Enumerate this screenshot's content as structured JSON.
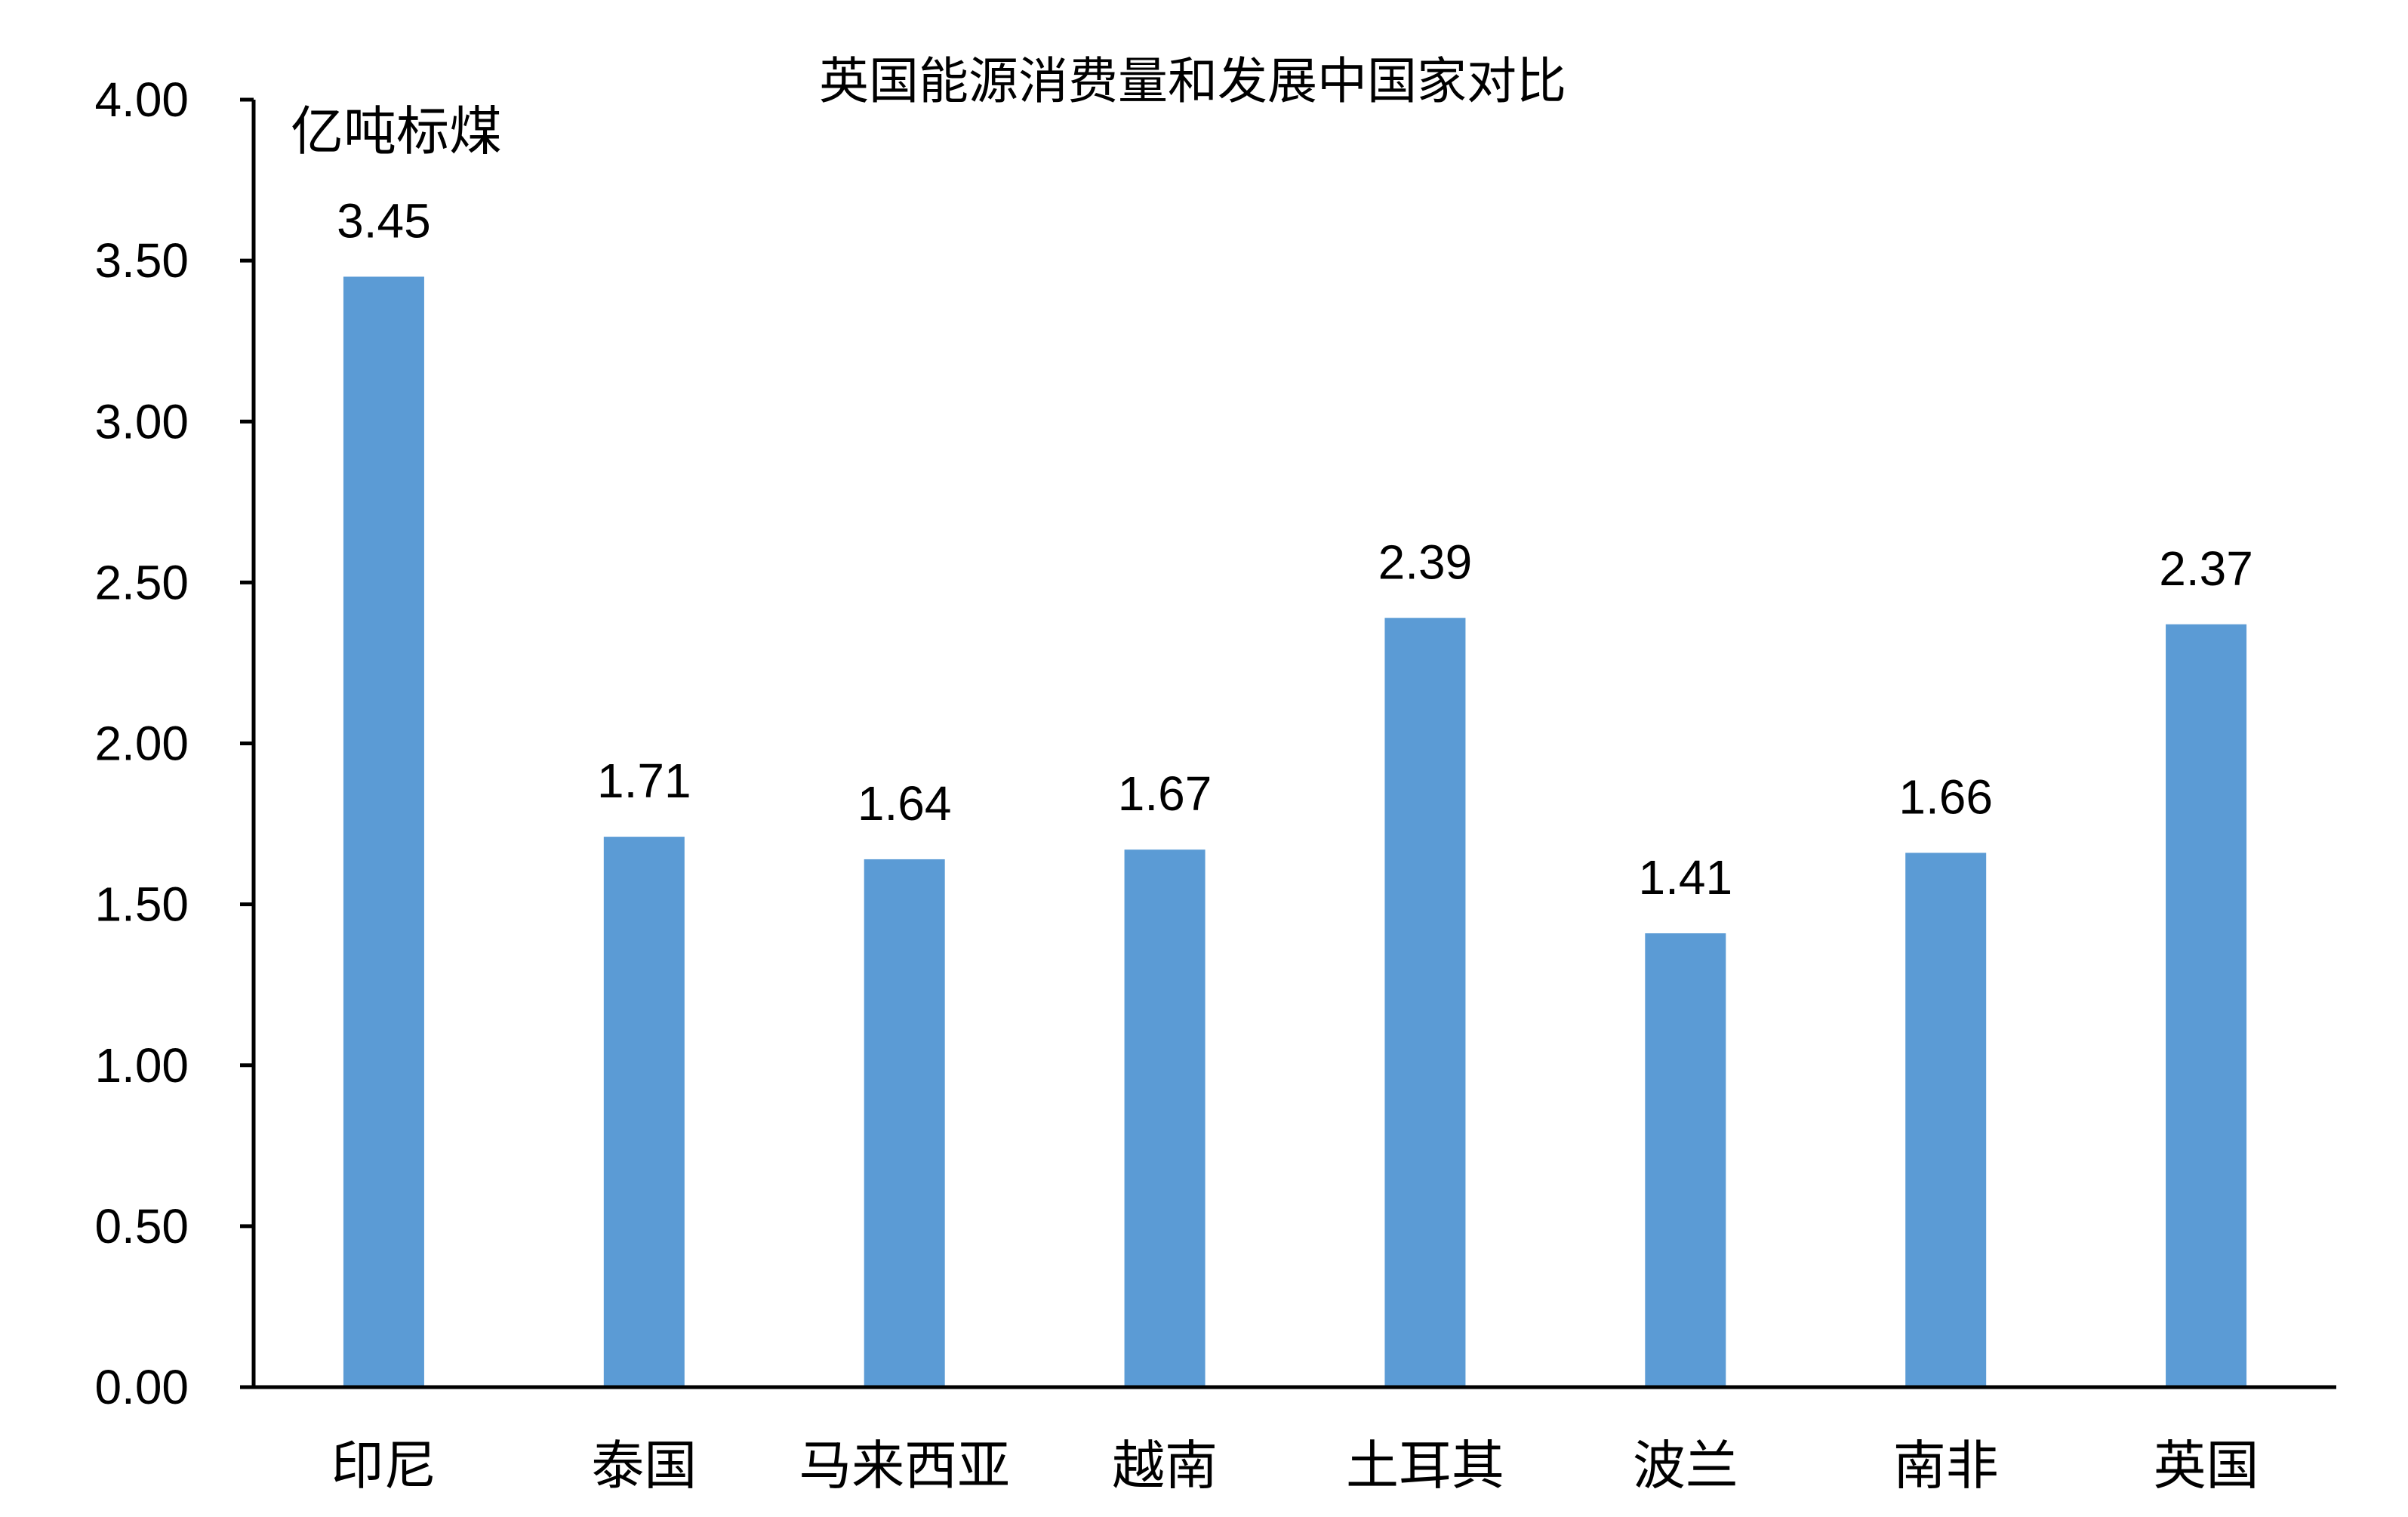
{
  "chart_data": {
    "type": "bar",
    "title": "英国能源消费量和发展中国家对比",
    "ylabel": "亿吨标煤",
    "xlabel": "",
    "categories": [
      "印尼",
      "泰国",
      "马来西亚",
      "越南",
      "土耳其",
      "波兰",
      "南非",
      "英国"
    ],
    "values": [
      3.45,
      1.71,
      1.64,
      1.67,
      2.39,
      1.41,
      1.66,
      2.37
    ],
    "data_labels": [
      "3.45",
      "1.71",
      "1.64",
      "1.67",
      "2.39",
      "1.41",
      "1.66",
      "2.37"
    ],
    "ylim": [
      0,
      4
    ],
    "yticks": [
      "0.00",
      "0.50",
      "1.00",
      "1.50",
      "2.00",
      "2.50",
      "3.00",
      "3.50",
      "4.00"
    ],
    "grid": false,
    "legend": "none",
    "bar_color": "#5B9BD5"
  }
}
